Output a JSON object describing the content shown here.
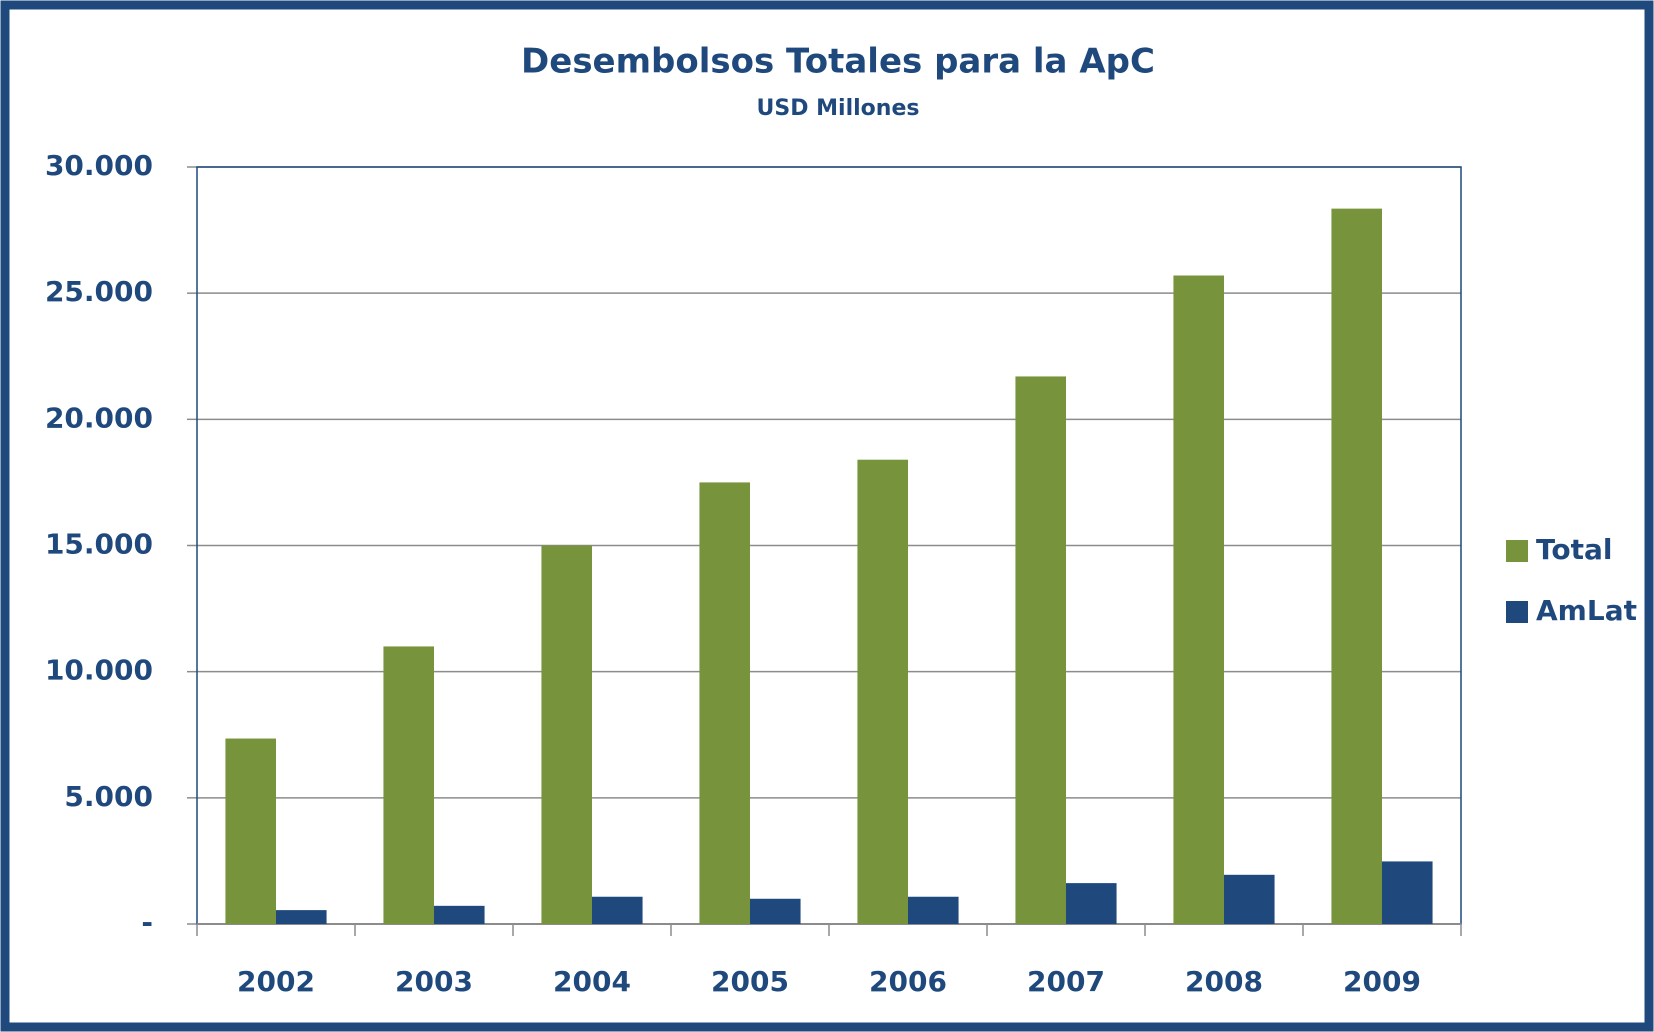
{
  "chart_data": {
    "type": "bar",
    "title": "Desembolsos Totales para la ApC",
    "subtitle": "USD Millones",
    "categories": [
      "2002",
      "2003",
      "2004",
      "2005",
      "2006",
      "2007",
      "2008",
      "2009"
    ],
    "series": [
      {
        "name": "Total",
        "color": "#77933c",
        "values": [
          7350,
          11000,
          15000,
          17500,
          18400,
          21700,
          25700,
          28350
        ]
      },
      {
        "name": "AmLat",
        "color": "#1f497d",
        "values": [
          550,
          720,
          1080,
          1000,
          1080,
          1620,
          1950,
          2480
        ]
      }
    ],
    "ylim": [
      0,
      30000
    ],
    "yticks": [
      {
        "value": 0,
        "label": "-"
      },
      {
        "value": 5000,
        "label": "5.000"
      },
      {
        "value": 10000,
        "label": "10.000"
      },
      {
        "value": 15000,
        "label": "15.000"
      },
      {
        "value": 20000,
        "label": "20.000"
      },
      {
        "value": 25000,
        "label": "25.000"
      },
      {
        "value": 30000,
        "label": "30.000"
      }
    ],
    "grid": true,
    "legend": "right"
  }
}
